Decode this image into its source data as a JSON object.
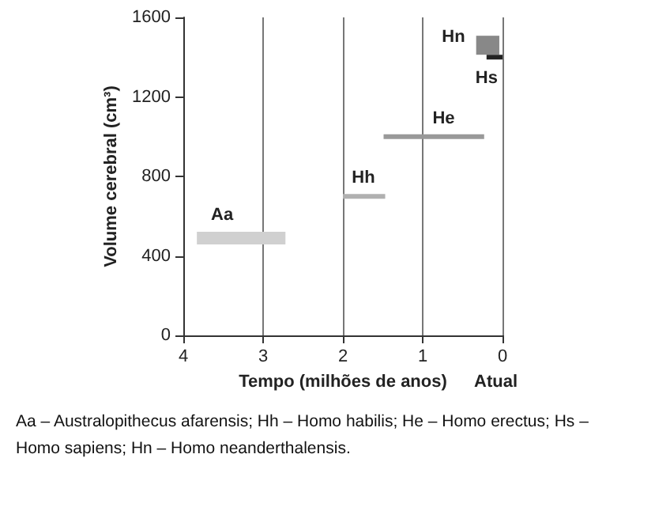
{
  "chart_data": {
    "type": "line",
    "xlabel": "Tempo (milhões de anos)",
    "ylabel": "Volume cerebral (cm³)",
    "xlim": [
      4,
      0
    ],
    "xticks": [
      4,
      3,
      2,
      1,
      0
    ],
    "ylim": [
      0,
      1600
    ],
    "yticks": [
      0,
      400,
      800,
      1200,
      1600
    ],
    "grid": "x",
    "marker": "none",
    "line_style": "solid",
    "series": [
      {
        "name": "Aa",
        "color": "#d0d0d0",
        "x": [
          3.83,
          2.72
        ],
        "values": [
          490,
          490
        ]
      },
      {
        "name": "Hh",
        "color": "#b0b0b0",
        "x": [
          2.0,
          1.47
        ],
        "values": [
          700,
          700
        ]
      },
      {
        "name": "He",
        "color": "#999999",
        "x": [
          1.49,
          0.23
        ],
        "values": [
          1000,
          1000
        ]
      },
      {
        "name": "Hn",
        "color": "#888888",
        "x": [
          0.33,
          0.04
        ],
        "values": [
          1460,
          1460
        ]
      },
      {
        "name": "Hs",
        "color": "#222222",
        "x": [
          0.2,
          0.0
        ],
        "values": [
          1400,
          1400
        ]
      }
    ],
    "annotations": [
      "Atual",
      "Aa – Australopithecus afarensis; Hh – Homo habilis; He – Homo erectus; Hs – Homo sapiens; Hn – Homo neanderthalensis."
    ]
  }
}
